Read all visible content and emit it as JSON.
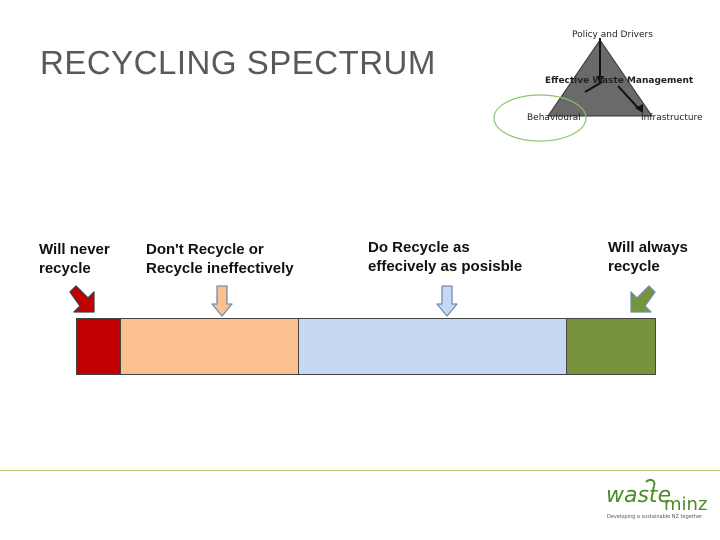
{
  "title": "RECYCLING SPECTRUM",
  "triangle": {
    "top": "Policy and Drivers",
    "center": "Effective Waste Management",
    "left": "Behavioural",
    "right": "Infrastructure"
  },
  "spectrum": [
    {
      "label": "Will never\nrecycle",
      "color": "#c00000"
    },
    {
      "label": "Don't Recycle or\nRecycle ineffectively",
      "color": "#fac090"
    },
    {
      "label": "Do Recycle as\neffecively as posisble",
      "color": "#c6d9f1"
    },
    {
      "label": "Will always\nrecycle",
      "color": "#77933c"
    }
  ],
  "logo": {
    "word_a": "waste",
    "word_b": "minz",
    "tagline": "Developing a sustainable NZ together"
  },
  "colors": {
    "title": "#595959",
    "footer_line": "#b5cf7a",
    "logo_green": "#4a8a2a"
  }
}
